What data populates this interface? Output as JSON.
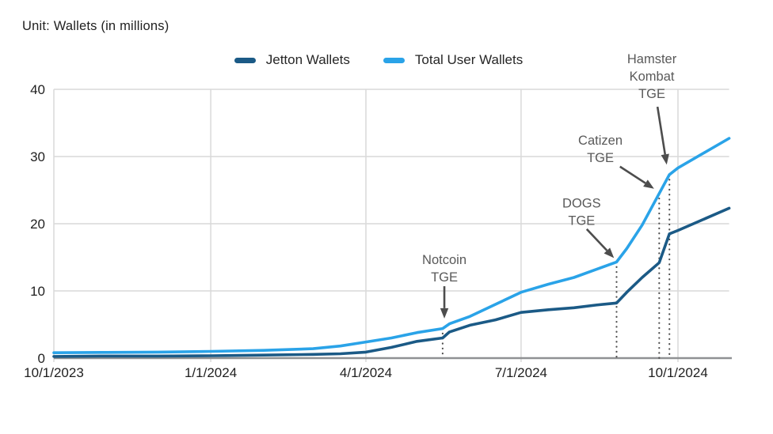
{
  "title": "Unit: Wallets (in millions)",
  "legend": [
    {
      "label": "Jetton Wallets",
      "color": "#1b5a86"
    },
    {
      "label": "Total User Wallets",
      "color": "#2aa3e8"
    }
  ],
  "chart_data": {
    "type": "line",
    "title": "Unit: Wallets (in millions)",
    "ylabel": "Wallets (millions)",
    "ylim": [
      0,
      40
    ],
    "yticks": [
      0,
      10,
      20,
      30,
      40
    ],
    "grid": true,
    "legend_position": "top",
    "x_unit": "days since 10/1/2023",
    "xlim_days": [
      0,
      396
    ],
    "xticks": [
      {
        "label": "10/1/2023",
        "day": 0
      },
      {
        "label": "1/1/2024",
        "day": 92
      },
      {
        "label": "4/1/2024",
        "day": 183
      },
      {
        "label": "7/1/2024",
        "day": 274
      },
      {
        "label": "10/1/2024",
        "day": 366
      }
    ],
    "series": [
      {
        "name": "Total User Wallets",
        "color": "#2aa3e8",
        "points": [
          [
            0,
            0.8
          ],
          [
            31,
            0.85
          ],
          [
            61,
            0.9
          ],
          [
            92,
            1.0
          ],
          [
            123,
            1.15
          ],
          [
            152,
            1.4
          ],
          [
            168,
            1.8
          ],
          [
            183,
            2.4
          ],
          [
            198,
            3.0
          ],
          [
            213,
            3.8
          ],
          [
            228,
            4.4
          ],
          [
            232,
            5.1
          ],
          [
            244,
            6.2
          ],
          [
            259,
            8.0
          ],
          [
            274,
            9.8
          ],
          [
            290,
            11.0
          ],
          [
            305,
            12.0
          ],
          [
            318,
            13.2
          ],
          [
            330,
            14.3
          ],
          [
            336,
            16.3
          ],
          [
            345,
            19.8
          ],
          [
            355,
            24.5
          ],
          [
            361,
            27.3
          ],
          [
            366,
            28.3
          ],
          [
            396,
            32.7
          ]
        ]
      },
      {
        "name": "Jetton Wallets",
        "color": "#1b5a86",
        "points": [
          [
            0,
            0.25
          ],
          [
            31,
            0.3
          ],
          [
            61,
            0.3
          ],
          [
            92,
            0.35
          ],
          [
            123,
            0.45
          ],
          [
            152,
            0.55
          ],
          [
            168,
            0.65
          ],
          [
            183,
            0.9
          ],
          [
            198,
            1.6
          ],
          [
            213,
            2.5
          ],
          [
            228,
            3.0
          ],
          [
            232,
            3.9
          ],
          [
            244,
            4.9
          ],
          [
            259,
            5.7
          ],
          [
            274,
            6.8
          ],
          [
            290,
            7.2
          ],
          [
            305,
            7.5
          ],
          [
            318,
            7.9
          ],
          [
            330,
            8.2
          ],
          [
            336,
            9.8
          ],
          [
            345,
            12.0
          ],
          [
            355,
            14.2
          ],
          [
            361,
            18.5
          ],
          [
            366,
            19.0
          ],
          [
            396,
            22.3
          ]
        ]
      }
    ],
    "events": [
      {
        "name": "Notcoin TGE",
        "day": 228,
        "top_val": 4.4
      },
      {
        "name": "DOGS TGE",
        "day": 330,
        "top_val": 14.3
      },
      {
        "name": "Catizen TGE",
        "day": 355,
        "top_val": 24.5
      },
      {
        "name": "Hamster Kombat TGE",
        "day": 361,
        "top_val": 27.3
      }
    ],
    "annotations": [
      {
        "id": "notcoin-tge",
        "lines": [
          "Notcoin",
          "TGE"
        ],
        "label_day": 229,
        "label_val": 13.4,
        "arrow_from": [
          229,
          10.7
        ],
        "arrow_to": [
          229,
          5.9
        ]
      },
      {
        "id": "dogs-tge",
        "lines": [
          "DOGS",
          "TGE"
        ],
        "label_day": 309.5,
        "label_val": 21.8,
        "arrow_from": [
          312.5,
          19.2
        ],
        "arrow_to": [
          328.5,
          14.9
        ]
      },
      {
        "id": "catizen-tge",
        "lines": [
          "Catizen",
          "TGE"
        ],
        "label_day": 320.5,
        "label_val": 31.2,
        "arrow_from": [
          332,
          28.5
        ],
        "arrow_to": [
          352,
          25.2
        ]
      },
      {
        "id": "hamster-kombat-tge",
        "lines": [
          "Hamster",
          "Kombat",
          "TGE"
        ],
        "label_day": 350.7,
        "label_val": 42.0,
        "arrow_from": [
          354,
          37.4
        ],
        "arrow_to": [
          359.4,
          28.8
        ]
      }
    ],
    "colors": {
      "grid": "#d9d9d9",
      "axis": "#8f9193",
      "annotation_text": "#595959",
      "arrow": "#4d4d4d",
      "event_dots": "#4d4d4d",
      "tick_text": "#1f1f1f"
    }
  }
}
